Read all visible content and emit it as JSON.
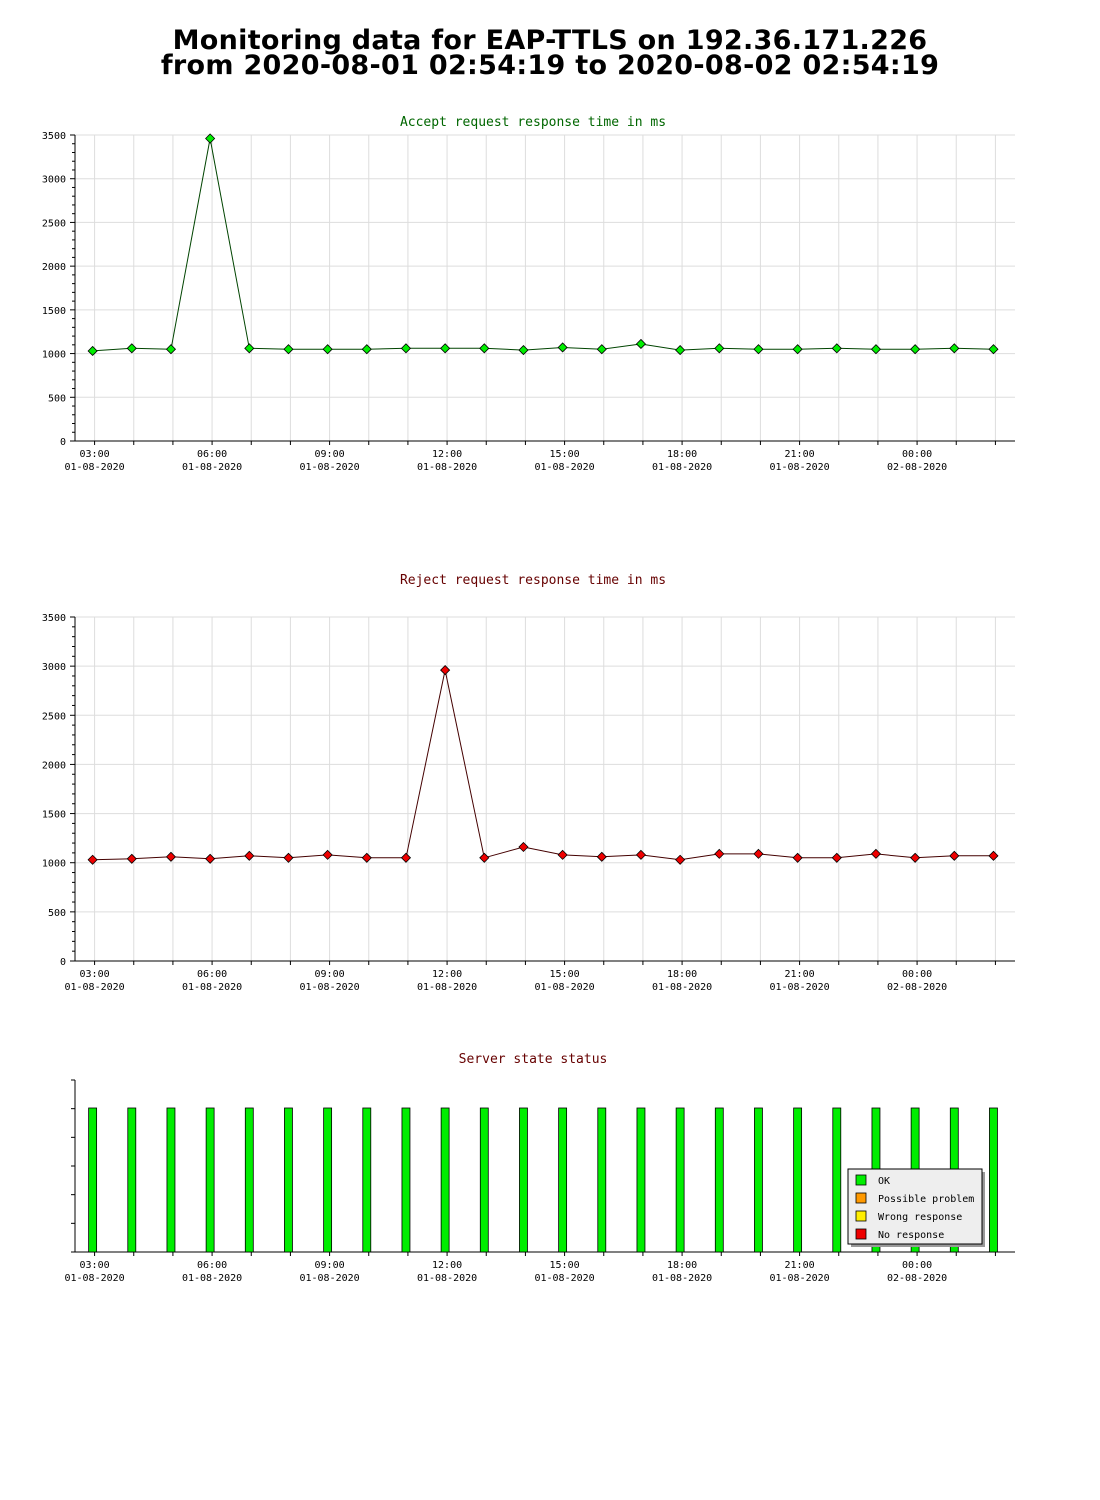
{
  "page": {
    "title_line1": "Monitoring data for EAP-TTLS on 192.36.171.226",
    "title_line2": "from 2020-08-01 02:54:19 to 2020-08-02 02:54:19"
  },
  "x_ticks": [
    {
      "time": "03:00",
      "date": "01-08-2020"
    },
    {
      "time": "06:00",
      "date": "01-08-2020"
    },
    {
      "time": "09:00",
      "date": "01-08-2020"
    },
    {
      "time": "12:00",
      "date": "01-08-2020"
    },
    {
      "time": "15:00",
      "date": "01-08-2020"
    },
    {
      "time": "18:00",
      "date": "01-08-2020"
    },
    {
      "time": "21:00",
      "date": "01-08-2020"
    },
    {
      "time": "00:00",
      "date": "02-08-2020"
    }
  ],
  "chart_data": [
    {
      "type": "line",
      "title": "Accept request response time in ms",
      "title_color": "#006600",
      "line_color": "#004400",
      "marker_color": "#00ee00",
      "ylim": [
        0,
        3500
      ],
      "yticks": [
        0,
        500,
        1000,
        1500,
        2000,
        2500,
        3000,
        3500
      ],
      "x_hours": [
        2.95,
        3.95,
        4.95,
        5.95,
        6.95,
        7.95,
        8.95,
        9.95,
        10.95,
        11.95,
        12.95,
        13.95,
        14.95,
        15.95,
        16.95,
        17.95,
        18.95,
        19.95,
        20.95,
        21.95,
        22.95,
        23.95,
        24.95,
        25.95
      ],
      "values": [
        1030,
        1060,
        1050,
        3460,
        1060,
        1050,
        1050,
        1050,
        1060,
        1060,
        1060,
        1040,
        1070,
        1050,
        1110,
        1040,
        1060,
        1050,
        1050,
        1060,
        1050,
        1050,
        1060,
        1050
      ]
    },
    {
      "type": "line",
      "title": "Reject request response time in ms",
      "title_color": "#660000",
      "line_color": "#440000",
      "marker_color": "#ee0000",
      "ylim": [
        0,
        3500
      ],
      "yticks": [
        0,
        500,
        1000,
        1500,
        2000,
        2500,
        3000,
        3500
      ],
      "x_hours": [
        2.95,
        3.95,
        4.95,
        5.95,
        6.95,
        7.95,
        8.95,
        9.95,
        10.95,
        11.95,
        12.95,
        13.95,
        14.95,
        15.95,
        16.95,
        17.95,
        18.95,
        19.95,
        20.95,
        21.95,
        22.95,
        23.95,
        24.95,
        25.95
      ],
      "values": [
        1030,
        1040,
        1060,
        1040,
        1070,
        1050,
        1080,
        1050,
        1050,
        2960,
        1050,
        1160,
        1080,
        1060,
        1080,
        1030,
        1090,
        1090,
        1050,
        1050,
        1090,
        1050,
        1070,
        1070
      ]
    },
    {
      "type": "bar",
      "title": "Server state status",
      "title_color": "#660000",
      "x_hours": [
        2.95,
        3.95,
        4.95,
        5.95,
        6.95,
        7.95,
        8.95,
        9.95,
        10.95,
        11.95,
        12.95,
        13.95,
        14.95,
        15.95,
        16.95,
        17.95,
        18.95,
        19.95,
        20.95,
        21.95,
        22.95,
        23.95,
        24.95,
        25.95
      ],
      "states": [
        "OK",
        "OK",
        "OK",
        "OK",
        "OK",
        "OK",
        "OK",
        "OK",
        "OK",
        "OK",
        "OK",
        "OK",
        "OK",
        "OK",
        "OK",
        "OK",
        "OK",
        "OK",
        "OK",
        "OK",
        "OK",
        "OK",
        "OK",
        "OK"
      ],
      "legend": [
        {
          "label": "OK",
          "color": "#00ee00"
        },
        {
          "label": "Possible problem",
          "color": "#ff9900"
        },
        {
          "label": "Wrong response",
          "color": "#ffee00"
        },
        {
          "label": "No response",
          "color": "#ee0000"
        }
      ],
      "legend_position": "bottom-right"
    }
  ]
}
